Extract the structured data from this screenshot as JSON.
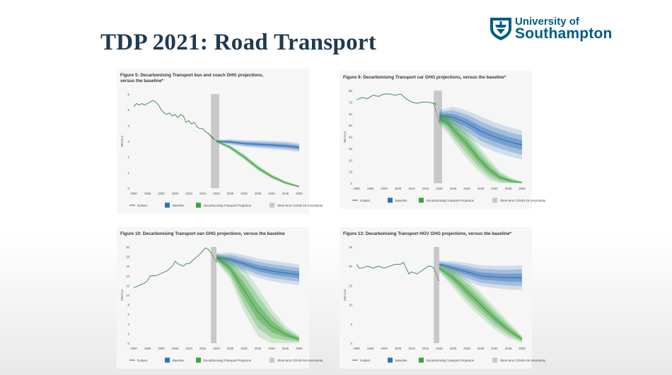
{
  "slide": {
    "title": "TDP 2021: Road Transport",
    "logo_line1": "University of",
    "logo_line2": "Southampton"
  },
  "colors": {
    "outturn": "#4a8a5a",
    "baseline": "#2f6fba",
    "projection": "#3aa33a",
    "projection_dark": "#1f5a2a",
    "covid": "#c8c8c8",
    "title": "#1f3a52"
  },
  "legend": {
    "outturn": "Outturn",
    "baseline": "Baseline",
    "projection": "Decarbonising Transport Projection",
    "covid": "Short-term COVID-19 Uncertainty"
  },
  "chart_data": [
    {
      "type": "line",
      "title_line1": "Figure 5: Decarbonising Transport bus and coach GHG projections,",
      "title_line2": "versus the baseline*",
      "ylabel": "MtCO₂e",
      "ylim": [
        0,
        6
      ],
      "yticks": [
        0,
        1,
        2,
        3,
        4,
        5,
        6
      ],
      "xlim": [
        1990,
        2050
      ],
      "xticks": [
        1990,
        1995,
        2000,
        2005,
        2010,
        2015,
        2020,
        2025,
        2030,
        2035,
        2040,
        2045,
        2050
      ],
      "covid_band": [
        2018,
        2021
      ],
      "outturn": {
        "x": [
          1990,
          1991,
          1992,
          1993,
          1994,
          1995,
          1996,
          1997,
          1998,
          1999,
          2000,
          2001,
          2002,
          2003,
          2004,
          2005,
          2006,
          2007,
          2008,
          2009,
          2010,
          2011,
          2012,
          2013,
          2014,
          2015,
          2016,
          2017,
          2018,
          2019
        ],
        "y": [
          5.2,
          5.4,
          5.3,
          5.4,
          5.3,
          5.4,
          5.5,
          5.6,
          5.5,
          5.3,
          5.0,
          4.8,
          4.7,
          4.8,
          4.6,
          4.7,
          4.5,
          4.7,
          4.6,
          4.2,
          4.3,
          4.1,
          4.2,
          3.9,
          3.8,
          3.8,
          3.6,
          3.5,
          3.3,
          3.1
        ]
      },
      "baseline": {
        "x": [
          2020,
          2025,
          2030,
          2035,
          2040,
          2045,
          2050
        ],
        "y": [
          3.0,
          2.95,
          2.85,
          2.8,
          2.75,
          2.7,
          2.6
        ],
        "spread": [
          0.05,
          0.1,
          0.12,
          0.14,
          0.15,
          0.16,
          0.16
        ]
      },
      "projection": {
        "x": [
          2020,
          2025,
          2030,
          2035,
          2040,
          2045,
          2050
        ],
        "y": [
          3.0,
          2.6,
          2.0,
          1.3,
          0.75,
          0.35,
          0.1
        ],
        "spread": [
          0.05,
          0.08,
          0.1,
          0.1,
          0.08,
          0.06,
          0.04
        ]
      },
      "dashed": {
        "x": [
          2017,
          2020
        ],
        "y": [
          3.5,
          3.0
        ]
      }
    },
    {
      "type": "line",
      "title_line1": "Figure 9: Decarbonising Transport car GHG projections, versus the baseline*",
      "title_line2": "",
      "ylabel": "MtCO₂e",
      "ylim": [
        0,
        80
      ],
      "yticks": [
        0,
        10,
        20,
        30,
        40,
        50,
        60,
        70,
        80
      ],
      "xlim": [
        1990,
        2050
      ],
      "xticks": [
        1990,
        1995,
        2000,
        2005,
        2010,
        2015,
        2020,
        2025,
        2030,
        2035,
        2040,
        2045,
        2050
      ],
      "covid_band": [
        2018,
        2021
      ],
      "outturn": {
        "x": [
          1990,
          1992,
          1994,
          1996,
          1998,
          2000,
          2002,
          2004,
          2006,
          2008,
          2010,
          2012,
          2014,
          2016,
          2018,
          2019
        ],
        "y": [
          72,
          74,
          73,
          76,
          75,
          77,
          77,
          76,
          77,
          73,
          70,
          69,
          70,
          70,
          69,
          68
        ]
      },
      "baseline": {
        "x": [
          2020,
          2025,
          2030,
          2035,
          2040,
          2045,
          2050
        ],
        "y": [
          58,
          57,
          52,
          45,
          40,
          36,
          33
        ],
        "spread": [
          3,
          5,
          6,
          7,
          7,
          7,
          7
        ]
      },
      "projection": {
        "x": [
          2020,
          2023,
          2026,
          2030,
          2034,
          2038,
          2042,
          2046,
          2050
        ],
        "y": [
          56,
          52,
          44,
          34,
          22,
          12,
          5,
          2,
          0.5
        ],
        "spread": [
          3,
          5,
          6,
          7,
          6,
          5,
          3,
          1.5,
          0.5
        ]
      },
      "dashed": {
        "x": [
          2018,
          2020
        ],
        "y": [
          69,
          52
        ]
      }
    },
    {
      "type": "line",
      "title_line1": "Figure 10: Decarbonising Transport van GHG projections, versus the baseline",
      "title_line2": "",
      "ylabel": "MtCO₂e",
      "ylim": [
        0,
        20
      ],
      "yticks": [
        0,
        2,
        4,
        6,
        8,
        10,
        12,
        14,
        16,
        18,
        20
      ],
      "xlim": [
        1990,
        2050
      ],
      "xticks": [
        1990,
        1995,
        2000,
        2005,
        2010,
        2015,
        2020,
        2025,
        2030,
        2035,
        2040,
        2045,
        2050
      ],
      "covid_band": [
        2018,
        2020
      ],
      "outturn": {
        "x": [
          1990,
          1992,
          1994,
          1995,
          1996,
          1998,
          2000,
          2002,
          2004,
          2005,
          2006,
          2008,
          2009,
          2010,
          2012,
          2014,
          2016,
          2017,
          2018
        ],
        "y": [
          11.5,
          12,
          12.5,
          13,
          14,
          14,
          14.5,
          15,
          16,
          17,
          16.5,
          16,
          16.5,
          16.5,
          17.5,
          18.5,
          19.8,
          19.5,
          18.8
        ]
      },
      "baseline": {
        "x": [
          2020,
          2025,
          2030,
          2035,
          2040,
          2045,
          2050
        ],
        "y": [
          17.8,
          17.4,
          16.5,
          15.6,
          15.0,
          14.6,
          14.2
        ],
        "spread": [
          0.5,
          0.8,
          1.0,
          1.1,
          1.2,
          1.2,
          1.2
        ]
      },
      "projection": {
        "x": [
          2020,
          2025,
          2030,
          2035,
          2040,
          2045,
          2050
        ],
        "y": [
          17.8,
          15.5,
          11.0,
          6.5,
          3.5,
          1.8,
          0.8
        ],
        "spread": [
          0.5,
          1.2,
          2.5,
          2.8,
          2.0,
          1.0,
          0.4
        ]
      },
      "dashed": {
        "x": [
          2018,
          2020
        ],
        "y": [
          18.8,
          16.8
        ]
      }
    },
    {
      "type": "line",
      "title_line1": "Figure 13: Decarbonising Transport HGV GHG projections, versus the baseline*",
      "title_line2": "",
      "ylabel": "MtCO₂e",
      "ylim": [
        0,
        25
      ],
      "yticks": [
        0,
        5,
        10,
        15,
        20,
        25
      ],
      "xlim": [
        1990,
        2050
      ],
      "xticks": [
        1990,
        1995,
        2000,
        2005,
        2010,
        2015,
        2020,
        2025,
        2030,
        2035,
        2040,
        2045,
        2050
      ],
      "covid_band": [
        2018,
        2020
      ],
      "outturn": {
        "x": [
          1990,
          1991,
          1992,
          1994,
          1996,
          1998,
          2000,
          2002,
          2004,
          2006,
          2007,
          2008,
          2009,
          2010,
          2012,
          2014,
          2016,
          2017,
          2018
        ],
        "y": [
          20.5,
          19.5,
          19.5,
          20,
          19.5,
          20,
          19.5,
          20,
          20.5,
          20.5,
          21,
          19.5,
          18,
          18.5,
          18,
          19,
          20,
          20,
          19.5
        ]
      },
      "baseline": {
        "x": [
          2020,
          2025,
          2030,
          2035,
          2040,
          2045,
          2050
        ],
        "y": [
          20.5,
          19.5,
          18.5,
          17.5,
          17.2,
          17.0,
          17.0
        ],
        "spread": [
          0.5,
          1.0,
          1.3,
          1.5,
          1.6,
          1.7,
          1.8
        ]
      },
      "projection": {
        "x": [
          2020,
          2025,
          2030,
          2035,
          2040,
          2045,
          2050
        ],
        "y": [
          19.5,
          17.0,
          13.5,
          10.0,
          6.5,
          3.5,
          1.0
        ],
        "spread": [
          0.6,
          1.4,
          1.8,
          1.8,
          1.6,
          1.2,
          0.5
        ]
      },
      "dashed": {
        "x": [
          2018,
          2020
        ],
        "y": [
          19.5,
          16
        ]
      }
    }
  ]
}
